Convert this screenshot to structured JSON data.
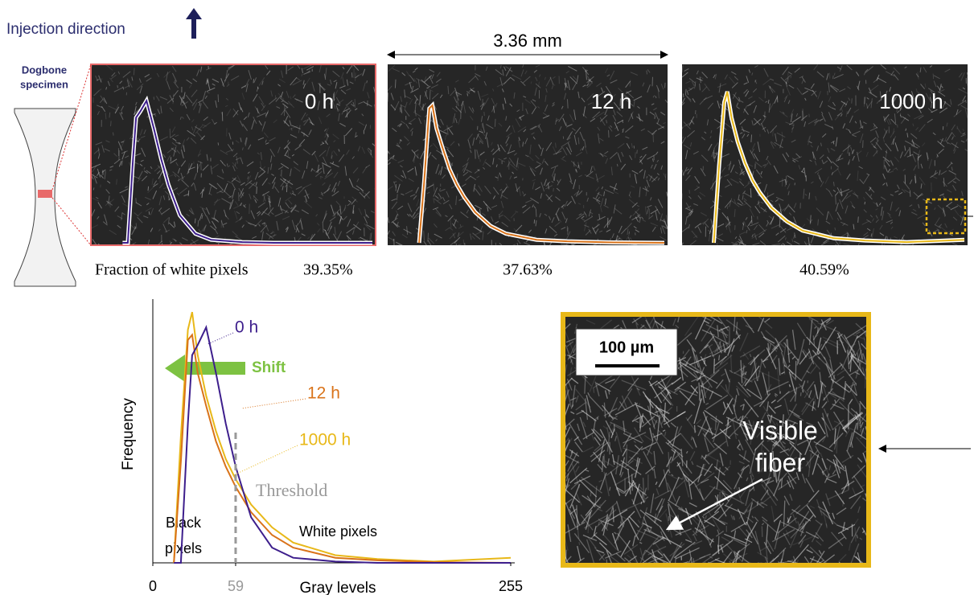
{
  "header": {
    "injection_label": "Injection direction",
    "specimen_label": [
      "Dogbone",
      "specimen"
    ],
    "scale_label": "3.36 mm"
  },
  "panels": [
    {
      "time": "0 h",
      "fraction": "39.35%"
    },
    {
      "time": "12 h",
      "fraction": "37.63%"
    },
    {
      "time": "1000 h",
      "fraction": "40.59%"
    }
  ],
  "fraction_prefix": "Fraction of white pixels",
  "chart_data": {
    "type": "line",
    "x_label": "Gray levels",
    "y_label": "Frequency",
    "x": [
      15,
      20,
      25,
      28,
      32,
      38,
      45,
      52,
      59,
      70,
      85,
      100,
      130,
      160,
      200,
      255
    ],
    "xlim": [
      0,
      255
    ],
    "ylim": [
      0,
      100
    ],
    "xticks": [
      0,
      59,
      255
    ],
    "series": [
      {
        "name": "0 h",
        "color": "#3d1e8c",
        "values": [
          0,
          0,
          55,
          82,
          86,
          93,
          75,
          55,
          38,
          18,
          6,
          2,
          0.5,
          0,
          0,
          0
        ]
      },
      {
        "name": "12 h",
        "color": "#d9731a",
        "values": [
          0,
          40,
          88,
          90,
          75,
          62,
          48,
          38,
          30,
          20,
          11,
          6,
          2,
          1,
          0.3,
          0
        ]
      },
      {
        "name": "1000 h",
        "color": "#e8b818",
        "values": [
          0,
          50,
          92,
          99,
          82,
          66,
          52,
          41,
          33,
          23,
          14,
          8,
          3,
          1.5,
          0.5,
          2
        ]
      }
    ],
    "annotations": {
      "shift": "Shift",
      "threshold": "Threshold",
      "black": [
        "Black",
        "pixels"
      ],
      "white": "White pixels"
    }
  },
  "inset": {
    "scale_bar": "100 µm",
    "annotation": [
      "Visible",
      "fiber"
    ]
  }
}
